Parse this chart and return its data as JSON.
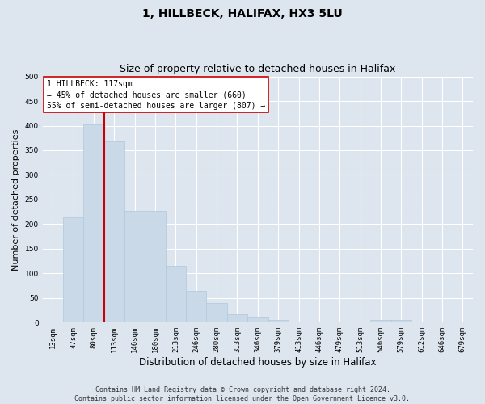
{
  "title": "1, HILLBECK, HALIFAX, HX3 5LU",
  "subtitle": "Size of property relative to detached houses in Halifax",
  "xlabel": "Distribution of detached houses by size in Halifax",
  "ylabel": "Number of detached properties",
  "categories": [
    "13sqm",
    "47sqm",
    "80sqm",
    "113sqm",
    "146sqm",
    "180sqm",
    "213sqm",
    "246sqm",
    "280sqm",
    "313sqm",
    "346sqm",
    "379sqm",
    "413sqm",
    "446sqm",
    "479sqm",
    "513sqm",
    "546sqm",
    "579sqm",
    "612sqm",
    "646sqm",
    "679sqm"
  ],
  "values": [
    2,
    213,
    403,
    368,
    227,
    227,
    115,
    65,
    40,
    17,
    12,
    6,
    3,
    3,
    2,
    2,
    6,
    6,
    2,
    1,
    2
  ],
  "bar_color": "#c9d9e8",
  "bar_edge_color": "#b0c8dc",
  "marker_line_color": "#cc0000",
  "annotation_line1": "1 HILLBECK: 117sqm",
  "annotation_line2": "← 45% of detached houses are smaller (660)",
  "annotation_line3": "55% of semi-detached houses are larger (807) →",
  "annotation_box_color": "#ffffff",
  "annotation_box_edgecolor": "#cc0000",
  "footer_line1": "Contains HM Land Registry data © Crown copyright and database right 2024.",
  "footer_line2": "Contains public sector information licensed under the Open Government Licence v3.0.",
  "ylim": [
    0,
    500
  ],
  "yticks": [
    0,
    50,
    100,
    150,
    200,
    250,
    300,
    350,
    400,
    450,
    500
  ],
  "background_color": "#dde6ef",
  "plot_facecolor": "#dde6ef",
  "grid_color": "#ffffff",
  "title_fontsize": 10,
  "subtitle_fontsize": 9,
  "xlabel_fontsize": 8.5,
  "ylabel_fontsize": 8,
  "tick_fontsize": 6.5,
  "annotation_fontsize": 7,
  "footer_fontsize": 6
}
